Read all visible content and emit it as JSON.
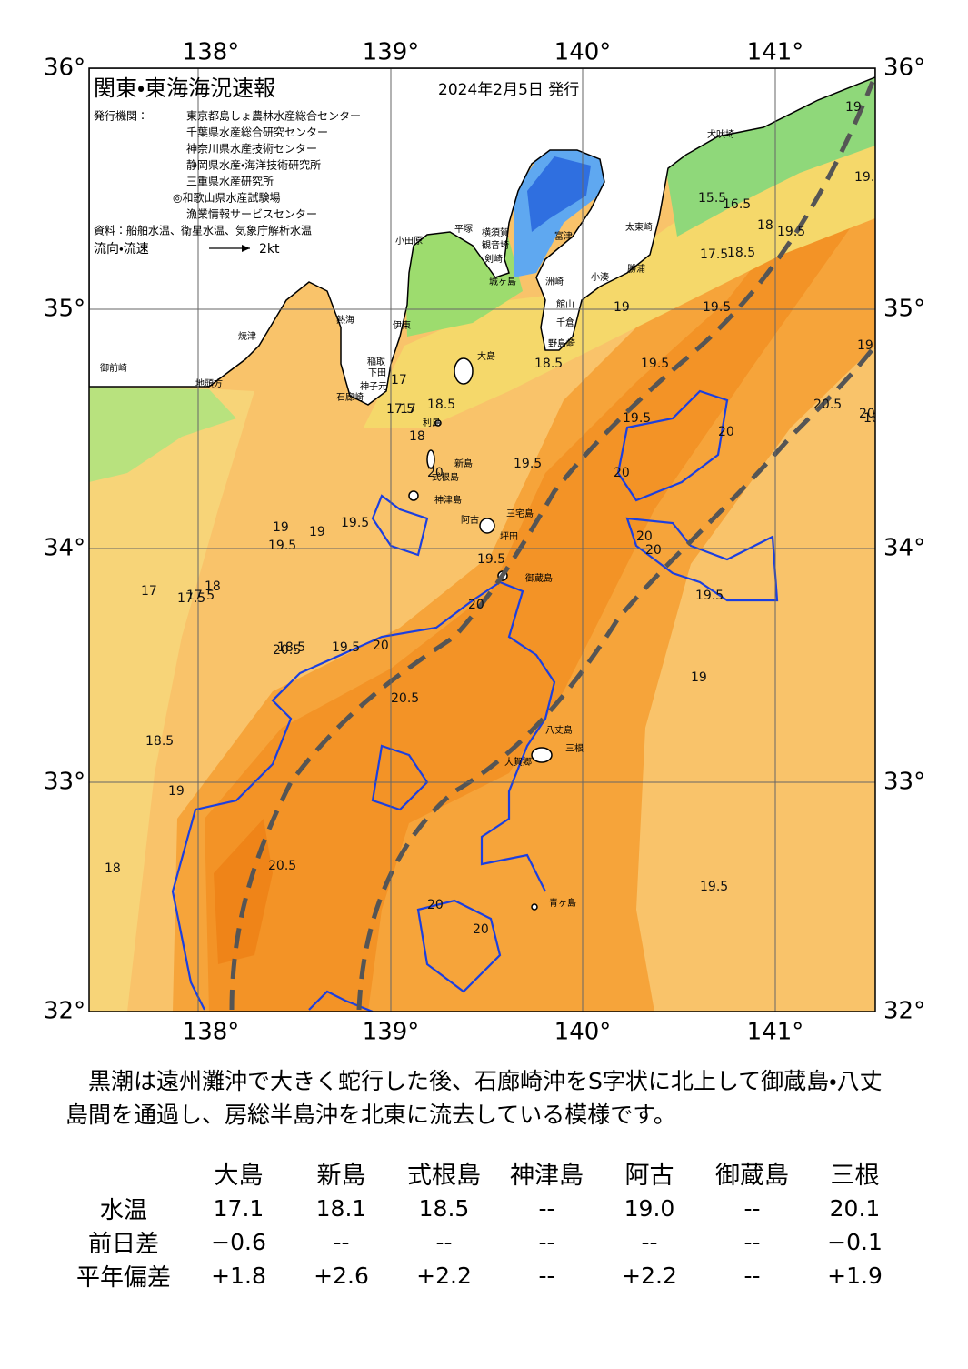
{
  "header": {
    "title": "関東・東海海況速報",
    "date": "2024年2月5日 発行",
    "agencies_label": "発行機関：",
    "agencies": [
      "東京都島しょ農林水産総合センター",
      "千葉県水産総合研究センター",
      "神奈川県水産技術センター",
      "静岡県水産・海洋技術研究所",
      "三重県水産研究所",
      "◎和歌山県水産試験場",
      "漁業情報サービスセンター"
    ],
    "source": "資料：船舶水温、衛星水温、気象庁解析水温",
    "current_legend": "流向・流速",
    "current_unit": "2kt"
  },
  "axes": {
    "longitude_labels": [
      "138°",
      "139°",
      "140°",
      "141°"
    ],
    "latitude_labels": [
      "36°",
      "35°",
      "34°",
      "33°",
      "32°"
    ]
  },
  "map": {
    "places": [
      "犬吠埼",
      "太東崎",
      "富津",
      "横須賀",
      "観音埼",
      "平塚",
      "小田原",
      "剣崎",
      "城ヶ島",
      "洲崎",
      "館山",
      "千倉",
      "野島崎",
      "勝浦",
      "小湊",
      "大島",
      "熱海",
      "伊東",
      "稲取",
      "下田",
      "石廊崎",
      "神子元",
      "焼津",
      "御前崎",
      "地頭方",
      "利島",
      "新島",
      "式根島",
      "神津島",
      "三宅島",
      "阿古",
      "坪田",
      "御蔵島",
      "八丈島",
      "大賀郷",
      "三根",
      "青ヶ島"
    ],
    "contour_labels": [
      "19",
      "19.5",
      "15.5",
      "16.5",
      "17.5",
      "18.5",
      "18",
      "19.5",
      "19",
      "19.5",
      "19.5",
      "18.5",
      "17",
      "17.5",
      "17",
      "18",
      "18.5",
      "19.5",
      "19.5",
      "20",
      "20",
      "20.5",
      "20",
      "20",
      "20",
      "20.5",
      "20.5",
      "20.5",
      "20",
      "19.5",
      "19",
      "19",
      "19.5",
      "19.5",
      "19.5",
      "20",
      "20",
      "19.5",
      "19.5",
      "19",
      "18.5",
      "17.5",
      "18",
      "18.5",
      "19",
      "18",
      "20",
      "20",
      "19.5",
      "18",
      "17",
      "17.5"
    ]
  },
  "summary": "黒潮は遠州灘沖で大きく蛇行した後、石廊崎沖をS字状に北上して御蔵島・八丈島間を通過し、房総半島沖を北東に流去している模様です。",
  "table": {
    "columns": [
      "大島",
      "新島",
      "式根島",
      "神津島",
      "阿古",
      "御蔵島",
      "三根"
    ],
    "rows": [
      [
        "水温",
        "17.1",
        "18.1",
        "18.5",
        "--",
        "19.0",
        "--",
        "20.1"
      ],
      [
        "前日差",
        "−0.6",
        "--",
        "--",
        "--",
        "--",
        "--",
        "−0.1"
      ],
      [
        "平年偏差",
        "+1.8",
        "+2.6",
        "+2.2",
        "--",
        "+2.2",
        "--",
        "+1.9"
      ]
    ]
  }
}
